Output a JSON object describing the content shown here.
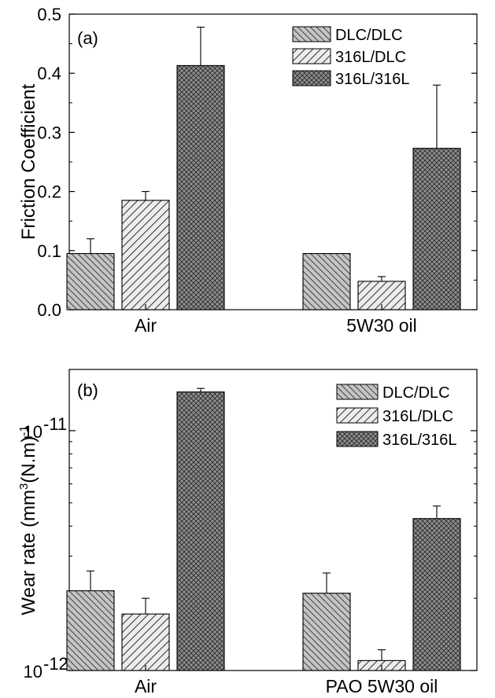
{
  "chart_data": [
    {
      "type": "bar",
      "panel_label": "(a)",
      "ylabel": "Friction Coefficient",
      "categories": [
        "Air",
        "5W30 oil"
      ],
      "ylim": [
        0,
        0.5
      ],
      "yticks": [
        "0.0",
        "0.1",
        "0.2",
        "0.3",
        "0.4",
        "0.5"
      ],
      "legend_position": "top-right",
      "series": [
        {
          "name": "DLC/DLC",
          "values": [
            0.095,
            0.095
          ],
          "errors": [
            0.025,
            0.0
          ],
          "pattern": "diag-back",
          "fill": "#bdbdbd"
        },
        {
          "name": "316L/DLC",
          "values": [
            0.185,
            0.048
          ],
          "errors": [
            0.015,
            0.008
          ],
          "pattern": "diag-fwd",
          "fill": "#d9d9d9"
        },
        {
          "name": "316L/316L",
          "values": [
            0.413,
            0.273
          ],
          "errors": [
            0.065,
            0.107
          ],
          "pattern": "cross",
          "fill": "#9a9a9a"
        }
      ]
    },
    {
      "type": "bar",
      "panel_label": "(b)",
      "ylabel": "Wear rate (mm3(N.m)-1",
      "ylabel_parts": {
        "a": "Wear rate (mm",
        "sup1": "3",
        "b": "(N.m)",
        "sup2": "-1"
      },
      "categories": [
        "Air",
        "PAO 5W30 oil"
      ],
      "yscale": "log",
      "ylim": [
        1e-12,
        1.8e-11
      ],
      "yticks": [
        {
          "base": "10",
          "exp": "-11",
          "value": 1e-11
        },
        {
          "base": "10",
          "exp": "-12",
          "value": 1e-12
        }
      ],
      "legend_position": "top-right",
      "series": [
        {
          "name": "DLC/DLC",
          "values": [
            2.15e-12,
            2.1e-12
          ],
          "upper": [
            2.6e-12,
            2.55e-12
          ],
          "pattern": "diag-back",
          "fill": "#a8a8a8"
        },
        {
          "name": "316L/DLC",
          "values": [
            1.72e-12,
            1.1e-12
          ],
          "upper": [
            2e-12,
            1.22e-12
          ],
          "pattern": "diag-fwd",
          "fill": "#dcdcdc"
        },
        {
          "name": "316L/316L",
          "values": [
            1.45e-11,
            4.3e-12
          ],
          "upper": [
            1.5e-11,
            4.85e-12
          ],
          "pattern": "cross",
          "fill": "#8c8c8c"
        }
      ]
    }
  ]
}
